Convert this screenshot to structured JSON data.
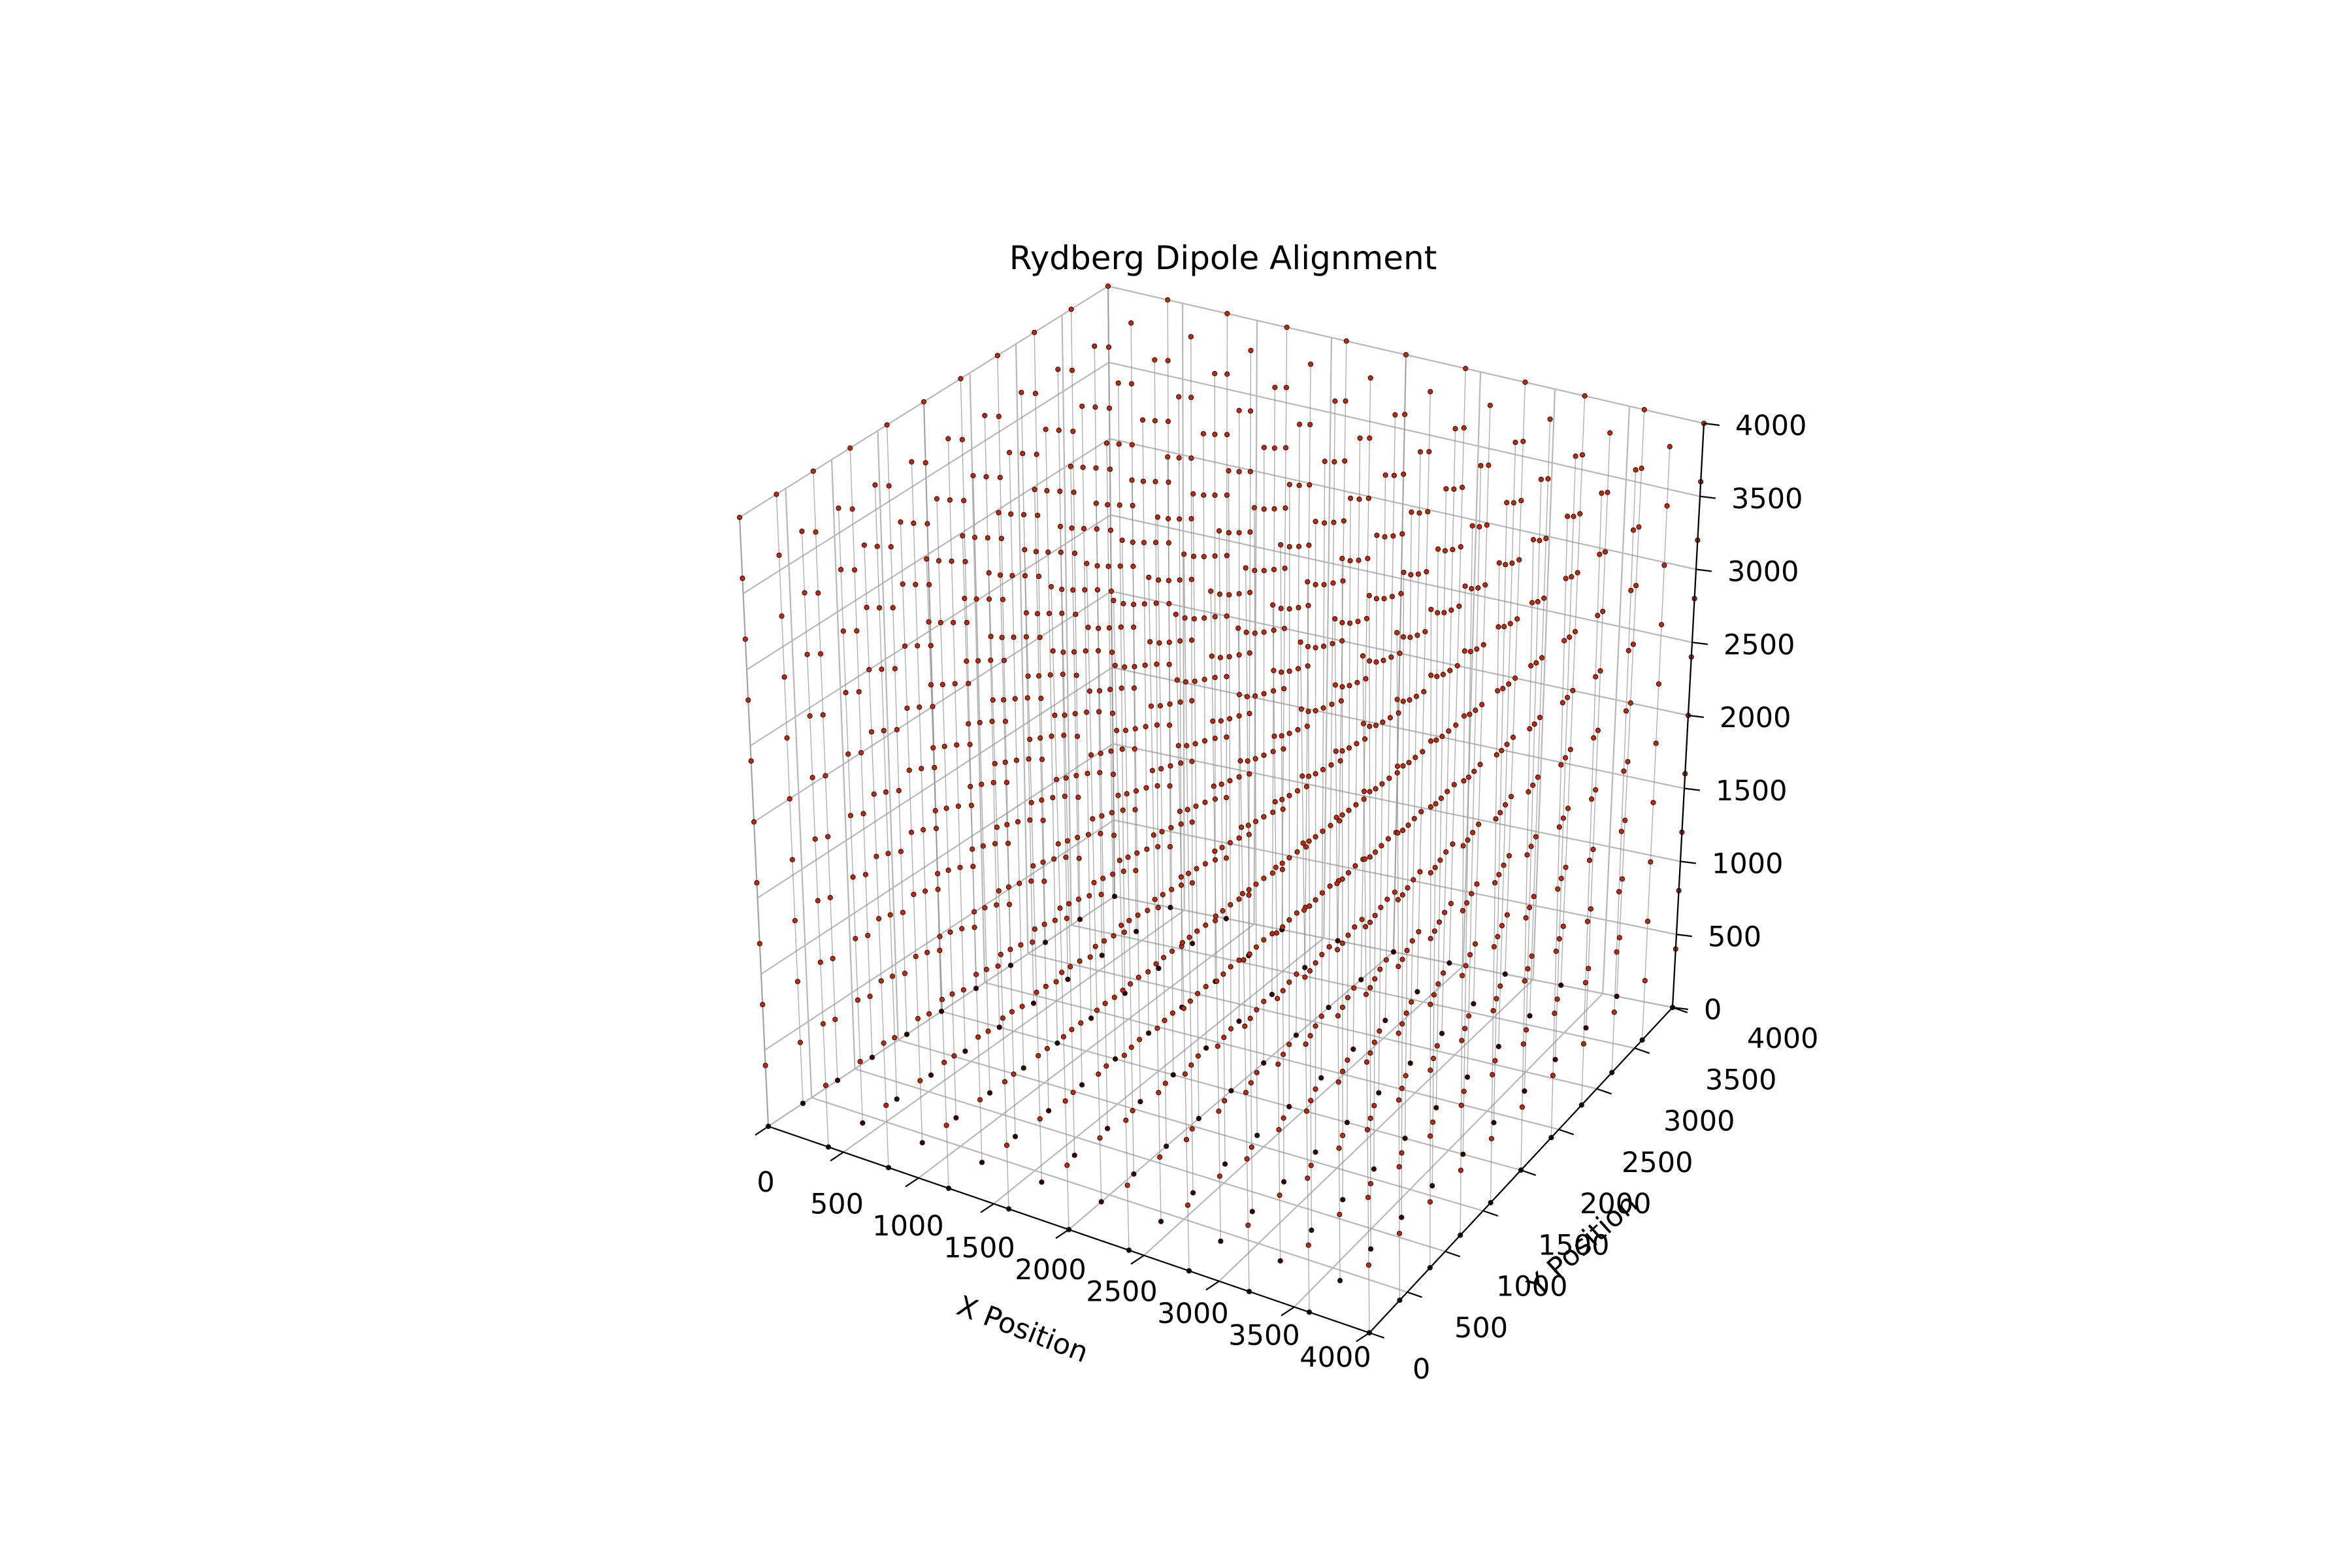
{
  "chart_data": {
    "type": "scatter",
    "subtype": "3d-stem",
    "title": "Rydberg Dipole Alignment",
    "xlabel": "X Position",
    "ylabel": "Y Position",
    "zlabel": "",
    "xlim": [
      0,
      4000
    ],
    "ylim": [
      0,
      4000
    ],
    "zlim": [
      0,
      4000
    ],
    "x_ticks": [
      "0",
      "500",
      "1000",
      "1500",
      "2000",
      "2500",
      "3000",
      "3500",
      "4000"
    ],
    "y_ticks": [
      "0",
      "500",
      "1000",
      "1500",
      "2000",
      "2500",
      "3000",
      "3500",
      "4000"
    ],
    "z_ticks": [
      "0",
      "500",
      "1000",
      "1500",
      "2000",
      "2500",
      "3000",
      "3500",
      "4000"
    ],
    "grid": true,
    "legend": "none",
    "lattice": {
      "x_values": [
        0,
        400,
        800,
        1200,
        1600,
        2000,
        2400,
        2800,
        3200,
        3600,
        4000
      ],
      "y_values": [
        0,
        400,
        800,
        1200,
        1600,
        2000,
        2400,
        2800,
        3200,
        3600,
        4000
      ],
      "z_values": [
        0,
        400,
        800,
        1200,
        1600,
        2000,
        2400,
        2800,
        3200,
        3600,
        4000
      ]
    },
    "colors": {
      "atom": "#c02a08",
      "atom_edge": "#2b0a04",
      "pane": "#f2f2f2",
      "grid": "#b8b8b8",
      "stem": "#8f8f8f"
    }
  }
}
